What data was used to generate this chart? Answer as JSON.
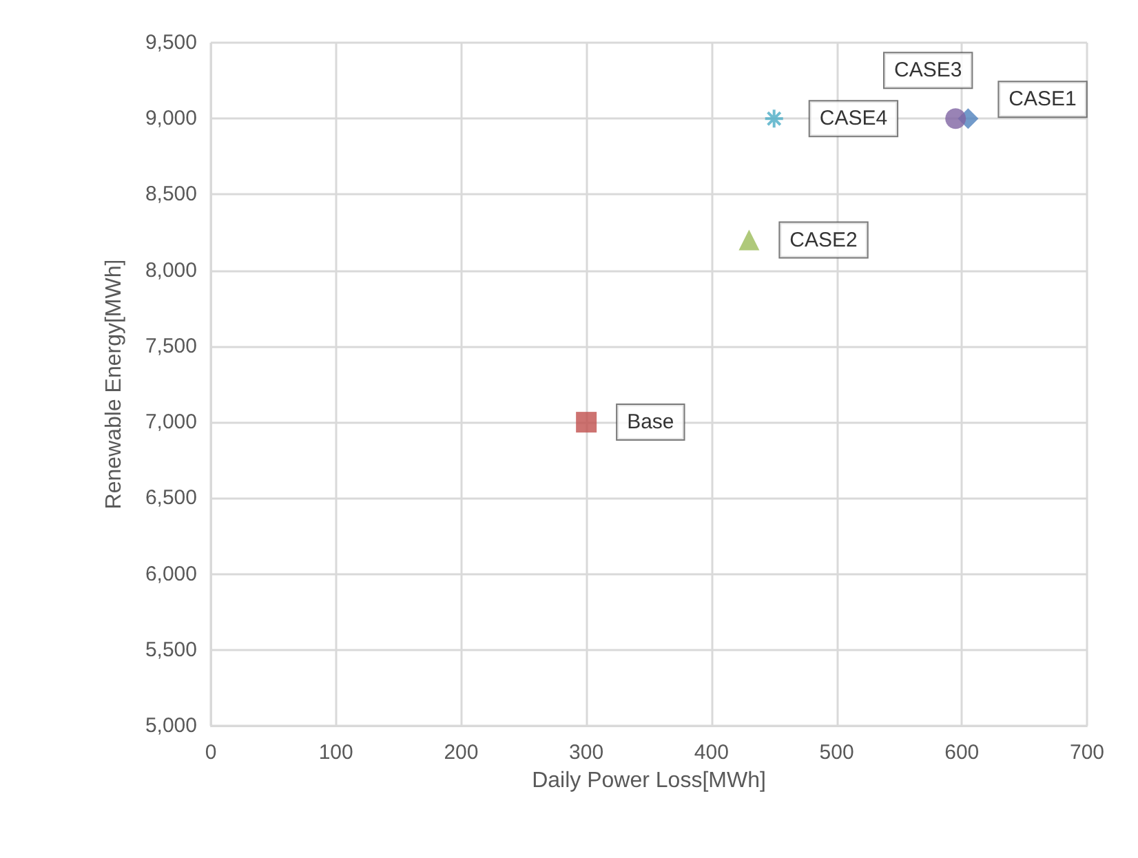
{
  "chart_data": {
    "type": "scatter",
    "xlabel": "Daily Power Loss[MWh]",
    "ylabel": "Renewable Energy[MWh]",
    "xlim": [
      0,
      700
    ],
    "xticks": [
      0,
      100,
      200,
      300,
      400,
      500,
      600,
      700
    ],
    "ylim": [
      5000,
      9500
    ],
    "yticks": [
      {
        "value": 5000,
        "label": "5,000"
      },
      {
        "value": 5500,
        "label": "5,500"
      },
      {
        "value": 6000,
        "label": "6,000"
      },
      {
        "value": 6500,
        "label": "6,500"
      },
      {
        "value": 7000,
        "label": "7,000"
      },
      {
        "value": 7500,
        "label": "7,500"
      },
      {
        "value": 8000,
        "label": "8,000"
      },
      {
        "value": 8500,
        "label": "8,500"
      },
      {
        "value": 9000,
        "label": "9,000"
      },
      {
        "value": 9500,
        "label": "9,500"
      }
    ],
    "grid": true,
    "legend": false,
    "series": [
      {
        "name": "Base",
        "color": "#c0504d",
        "marker": "square",
        "x": [
          300
        ],
        "values": [
          7000
        ]
      },
      {
        "name": "CASE1",
        "color": "#4f81bd",
        "marker": "diamond",
        "x": [
          605
        ],
        "values": [
          9000
        ]
      },
      {
        "name": "CASE2",
        "color": "#9bbb59",
        "marker": "triangle",
        "x": [
          430
        ],
        "values": [
          8200
        ]
      },
      {
        "name": "CASE3",
        "color": "#8064a2",
        "marker": "circle",
        "x": [
          595
        ],
        "values": [
          9000
        ]
      },
      {
        "name": "CASE4",
        "color": "#4bacc6",
        "marker": "cross",
        "x": [
          450
        ],
        "values": [
          9000
        ]
      }
    ]
  }
}
